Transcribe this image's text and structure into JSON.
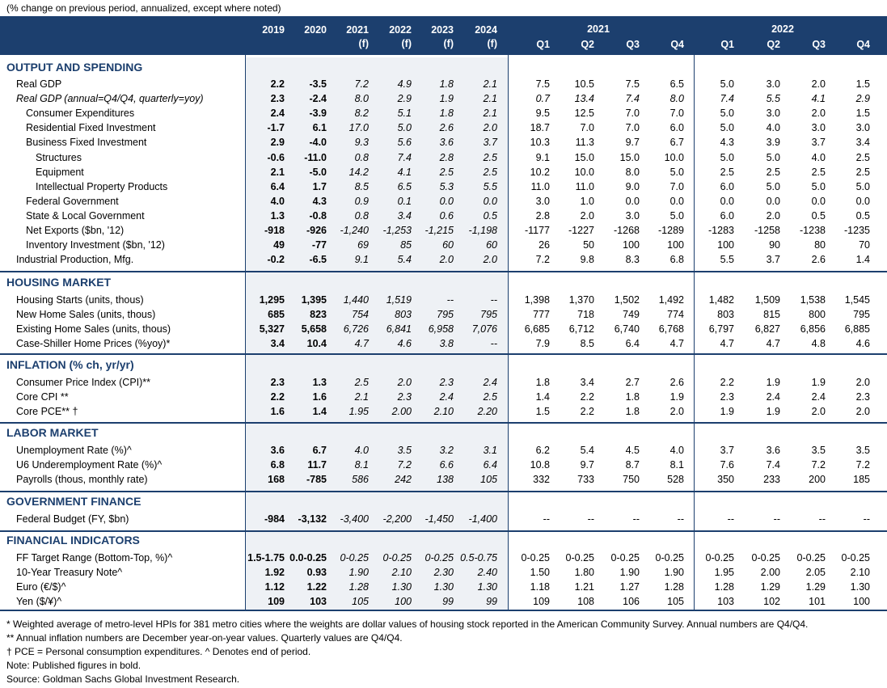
{
  "note_top": "(% change on previous period, annualized, except where noted)",
  "header": {
    "annual": [
      [
        "2019",
        ""
      ],
      [
        "2020",
        ""
      ],
      [
        "2021",
        "(f)"
      ],
      [
        "2022",
        "(f)"
      ],
      [
        "2023",
        "(f)"
      ],
      [
        "2024",
        "(f)"
      ]
    ],
    "group2021": "2021",
    "group2022": "2022",
    "quarters": [
      "Q1",
      "Q2",
      "Q3",
      "Q4"
    ]
  },
  "sections": [
    {
      "title": "OUTPUT AND SPENDING",
      "rows": [
        {
          "label": "Real GDP",
          "indent": 0,
          "italic": false,
          "vals": [
            "2.2",
            "-3.5",
            "7.2",
            "4.9",
            "1.8",
            "2.1",
            "7.5",
            "10.5",
            "7.5",
            "6.5",
            "5.0",
            "3.0",
            "2.0",
            "1.5"
          ]
        },
        {
          "label": "Real GDP (annual=Q4/Q4, quarterly=yoy)",
          "indent": 0,
          "italic": true,
          "vals": [
            "2.3",
            "-2.4",
            "8.0",
            "2.9",
            "1.9",
            "2.1",
            "0.7",
            "13.4",
            "7.4",
            "8.0",
            "7.4",
            "5.5",
            "4.1",
            "2.9"
          ]
        },
        {
          "label": "Consumer Expenditures",
          "indent": 1,
          "italic": false,
          "vals": [
            "2.4",
            "-3.9",
            "8.2",
            "5.1",
            "1.8",
            "2.1",
            "9.5",
            "12.5",
            "7.0",
            "7.0",
            "5.0",
            "3.0",
            "2.0",
            "1.5"
          ]
        },
        {
          "label": "Residential Fixed Investment",
          "indent": 1,
          "italic": false,
          "vals": [
            "-1.7",
            "6.1",
            "17.0",
            "5.0",
            "2.6",
            "2.0",
            "18.7",
            "7.0",
            "7.0",
            "6.0",
            "5.0",
            "4.0",
            "3.0",
            "3.0"
          ]
        },
        {
          "label": "Business Fixed Investment",
          "indent": 1,
          "italic": false,
          "vals": [
            "2.9",
            "-4.0",
            "9.3",
            "5.6",
            "3.6",
            "3.7",
            "10.3",
            "11.3",
            "9.7",
            "6.7",
            "4.3",
            "3.9",
            "3.7",
            "3.4"
          ]
        },
        {
          "label": "Structures",
          "indent": 2,
          "italic": false,
          "vals": [
            "-0.6",
            "-11.0",
            "0.8",
            "7.4",
            "2.8",
            "2.5",
            "9.1",
            "15.0",
            "15.0",
            "10.0",
            "5.0",
            "5.0",
            "4.0",
            "2.5"
          ]
        },
        {
          "label": "Equipment",
          "indent": 2,
          "italic": false,
          "vals": [
            "2.1",
            "-5.0",
            "14.2",
            "4.1",
            "2.5",
            "2.5",
            "10.2",
            "10.0",
            "8.0",
            "5.0",
            "2.5",
            "2.5",
            "2.5",
            "2.5"
          ]
        },
        {
          "label": "Intellectual Property Products",
          "indent": 2,
          "italic": false,
          "vals": [
            "6.4",
            "1.7",
            "8.5",
            "6.5",
            "5.3",
            "5.5",
            "11.0",
            "11.0",
            "9.0",
            "7.0",
            "6.0",
            "5.0",
            "5.0",
            "5.0"
          ]
        },
        {
          "label": "Federal Government",
          "indent": 1,
          "italic": false,
          "vals": [
            "4.0",
            "4.3",
            "0.9",
            "0.1",
            "0.0",
            "0.0",
            "3.0",
            "1.0",
            "0.0",
            "0.0",
            "0.0",
            "0.0",
            "0.0",
            "0.0"
          ]
        },
        {
          "label": "State & Local Government",
          "indent": 1,
          "italic": false,
          "vals": [
            "1.3",
            "-0.8",
            "0.8",
            "3.4",
            "0.6",
            "0.5",
            "2.8",
            "2.0",
            "3.0",
            "5.0",
            "6.0",
            "2.0",
            "0.5",
            "0.5"
          ]
        },
        {
          "label": "Net Exports ($bn, '12)",
          "indent": 1,
          "italic": false,
          "vals": [
            "-918",
            "-926",
            "-1,240",
            "-1,253",
            "-1,215",
            "-1,198",
            "-1177",
            "-1227",
            "-1268",
            "-1289",
            "-1283",
            "-1258",
            "-1238",
            "-1235"
          ]
        },
        {
          "label": "Inventory Investment ($bn, '12)",
          "indent": 1,
          "italic": false,
          "vals": [
            "49",
            "-77",
            "69",
            "85",
            "60",
            "60",
            "26",
            "50",
            "100",
            "100",
            "100",
            "90",
            "80",
            "70"
          ]
        },
        {
          "label": "Industrial Production, Mfg.",
          "indent": 0,
          "italic": false,
          "vals": [
            "-0.2",
            "-6.5",
            "9.1",
            "5.4",
            "2.0",
            "2.0",
            "7.2",
            "9.8",
            "8.3",
            "6.8",
            "5.5",
            "3.7",
            "2.6",
            "1.4"
          ]
        }
      ]
    },
    {
      "title": "HOUSING MARKET",
      "rows": [
        {
          "label": "Housing Starts (units, thous)",
          "indent": 0,
          "italic": false,
          "vals": [
            "1,295",
            "1,395",
            "1,440",
            "1,519",
            "--",
            "--",
            "1,398",
            "1,370",
            "1,502",
            "1,492",
            "1,482",
            "1,509",
            "1,538",
            "1,545"
          ]
        },
        {
          "label": "New Home Sales (units, thous)",
          "indent": 0,
          "italic": false,
          "vals": [
            "685",
            "823",
            "754",
            "803",
            "795",
            "795",
            "777",
            "718",
            "749",
            "774",
            "803",
            "815",
            "800",
            "795"
          ]
        },
        {
          "label": "Existing Home Sales (units, thous)",
          "indent": 0,
          "italic": false,
          "vals": [
            "5,327",
            "5,658",
            "6,726",
            "6,841",
            "6,958",
            "7,076",
            "6,685",
            "6,712",
            "6,740",
            "6,768",
            "6,797",
            "6,827",
            "6,856",
            "6,885"
          ]
        },
        {
          "label": "Case-Shiller Home Prices (%yoy)*",
          "indent": 0,
          "italic": false,
          "vals": [
            "3.4",
            "10.4",
            "4.7",
            "4.6",
            "3.8",
            "--",
            "7.9",
            "8.5",
            "6.4",
            "4.7",
            "4.7",
            "4.7",
            "4.8",
            "4.6"
          ]
        }
      ]
    },
    {
      "title": "INFLATION (% ch, yr/yr)",
      "rows": [
        {
          "label": "Consumer Price Index (CPI)**",
          "indent": 0,
          "italic": false,
          "vals": [
            "2.3",
            "1.3",
            "2.5",
            "2.0",
            "2.3",
            "2.4",
            "1.8",
            "3.4",
            "2.7",
            "2.6",
            "2.2",
            "1.9",
            "1.9",
            "2.0"
          ]
        },
        {
          "label": "Core CPI **",
          "indent": 0,
          "italic": false,
          "vals": [
            "2.2",
            "1.6",
            "2.1",
            "2.3",
            "2.4",
            "2.5",
            "1.4",
            "2.2",
            "1.8",
            "1.9",
            "2.3",
            "2.4",
            "2.4",
            "2.3"
          ]
        },
        {
          "label": "Core PCE** †",
          "indent": 0,
          "italic": false,
          "vals": [
            "1.6",
            "1.4",
            "1.95",
            "2.00",
            "2.10",
            "2.20",
            "1.5",
            "2.2",
            "1.8",
            "2.0",
            "1.9",
            "1.9",
            "2.0",
            "2.0"
          ]
        }
      ]
    },
    {
      "title": "LABOR MARKET",
      "rows": [
        {
          "label": "Unemployment Rate (%)^",
          "indent": 0,
          "italic": false,
          "vals": [
            "3.6",
            "6.7",
            "4.0",
            "3.5",
            "3.2",
            "3.1",
            "6.2",
            "5.4",
            "4.5",
            "4.0",
            "3.7",
            "3.6",
            "3.5",
            "3.5"
          ]
        },
        {
          "label": "U6 Underemployment Rate (%)^",
          "indent": 0,
          "italic": false,
          "vals": [
            "6.8",
            "11.7",
            "8.1",
            "7.2",
            "6.6",
            "6.4",
            "10.8",
            "9.7",
            "8.7",
            "8.1",
            "7.6",
            "7.4",
            "7.2",
            "7.2"
          ]
        },
        {
          "label": "Payrolls (thous, monthly rate)",
          "indent": 0,
          "italic": false,
          "vals": [
            "168",
            "-785",
            "586",
            "242",
            "138",
            "105",
            "332",
            "733",
            "750",
            "528",
            "350",
            "233",
            "200",
            "185"
          ]
        }
      ]
    },
    {
      "title": "GOVERNMENT FINANCE",
      "rows": [
        {
          "label": "Federal Budget (FY, $bn)",
          "indent": 0,
          "italic": false,
          "vals": [
            "-984",
            "-3,132",
            "-3,400",
            "-2,200",
            "-1,450",
            "-1,400",
            "--",
            "--",
            "--",
            "--",
            "--",
            "--",
            "--",
            "--"
          ]
        }
      ]
    },
    {
      "title": "FINANCIAL INDICATORS",
      "rows": [
        {
          "label": "FF Target Range (Bottom-Top, %)^",
          "indent": 0,
          "italic": false,
          "vals": [
            "1.5-1.75",
            "0.0-0.25",
            "0-0.25",
            "0-0.25",
            "0-0.25",
            "0.5-0.75",
            "0-0.25",
            "0-0.25",
            "0-0.25",
            "0-0.25",
            "0-0.25",
            "0-0.25",
            "0-0.25",
            "0-0.25"
          ]
        },
        {
          "label": "10-Year Treasury Note^",
          "indent": 0,
          "italic": false,
          "vals": [
            "1.92",
            "0.93",
            "1.90",
            "2.10",
            "2.30",
            "2.40",
            "1.50",
            "1.80",
            "1.90",
            "1.90",
            "1.95",
            "2.00",
            "2.05",
            "2.10"
          ]
        },
        {
          "label": "Euro (€/$)^",
          "indent": 0,
          "italic": false,
          "vals": [
            "1.12",
            "1.22",
            "1.28",
            "1.30",
            "1.30",
            "1.30",
            "1.18",
            "1.21",
            "1.27",
            "1.28",
            "1.28",
            "1.29",
            "1.29",
            "1.30"
          ]
        },
        {
          "label": "Yen ($/¥)^",
          "indent": 0,
          "italic": false,
          "vals": [
            "109",
            "103",
            "105",
            "100",
            "99",
            "99",
            "109",
            "108",
            "106",
            "105",
            "103",
            "102",
            "101",
            "100"
          ]
        }
      ]
    }
  ],
  "footnotes": [
    "* Weighted average of metro-level HPIs for 381 metro cities where the weights are dollar values of housing stock reported in the American Community Survey. Annual numbers are Q4/Q4.",
    "** Annual inflation numbers are December year-on-year values. Quarterly values are Q4/Q4.",
    "† PCE = Personal consumption expenditures.  ^ Denotes end of period.",
    "Note: Published figures in bold.",
    "Source: Goldman Sachs Global Investment Research."
  ]
}
